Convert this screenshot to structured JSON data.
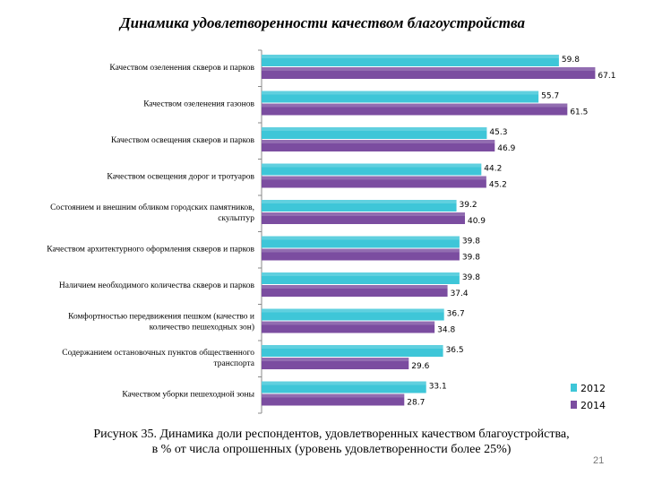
{
  "chart_data": {
    "type": "bar",
    "orientation": "horizontal",
    "title": "Динамика удовлетворенности качеством благоустройства",
    "categories": [
      [
        "Качеством озеленения скверов и парков"
      ],
      [
        "Качеством озеленения газонов"
      ],
      [
        "Качеством освещения скверов и парков"
      ],
      [
        "Качеством освещения дорог и тротуаров"
      ],
      [
        "Состоянием и внешним обликом городских памятников,",
        "скульптур"
      ],
      [
        "Качеством архитектурного оформления скверов и парков"
      ],
      [
        "Наличием необходимого количества скверов и парков"
      ],
      [
        "Комфортностью передвижения пешком (качество и",
        "количество пешеходных зон)"
      ],
      [
        "Содержанием остановочных пунктов общественного",
        "транспорта"
      ],
      [
        "Качеством уборки пешеходной зоны"
      ]
    ],
    "series": [
      {
        "name": "2012",
        "color": "#3ec6d8",
        "values": [
          59.8,
          55.7,
          45.3,
          44.2,
          39.2,
          39.8,
          39.8,
          36.7,
          36.5,
          33.1
        ],
        "labels": [
          "59.8",
          "55.7",
          "45.3",
          "44.2",
          "39.2",
          "39.8",
          "39.8",
          "36.7",
          "36.5",
          "33.1"
        ]
      },
      {
        "name": "2014",
        "color": "#7b4da0",
        "values": [
          67.1,
          61.5,
          46.9,
          45.2,
          40.9,
          39.8,
          37.4,
          34.8,
          29.6,
          28.7
        ],
        "labels": [
          "67.1",
          "61.5",
          "46.9",
          "45.2",
          "40.9",
          "39.8",
          "37.4",
          "34.8",
          "29.6",
          "28.7"
        ]
      }
    ],
    "xlim": [
      0,
      70
    ],
    "grid": false,
    "legend_position": "bottom-right"
  },
  "caption": {
    "line1": "Рисунок 35. Динамика доли респондентов, удовлетворенных качеством благоустройства,",
    "line2": "в % от числа опрошенных (уровень удовлетворенности более 25%)"
  },
  "page_number": "21"
}
